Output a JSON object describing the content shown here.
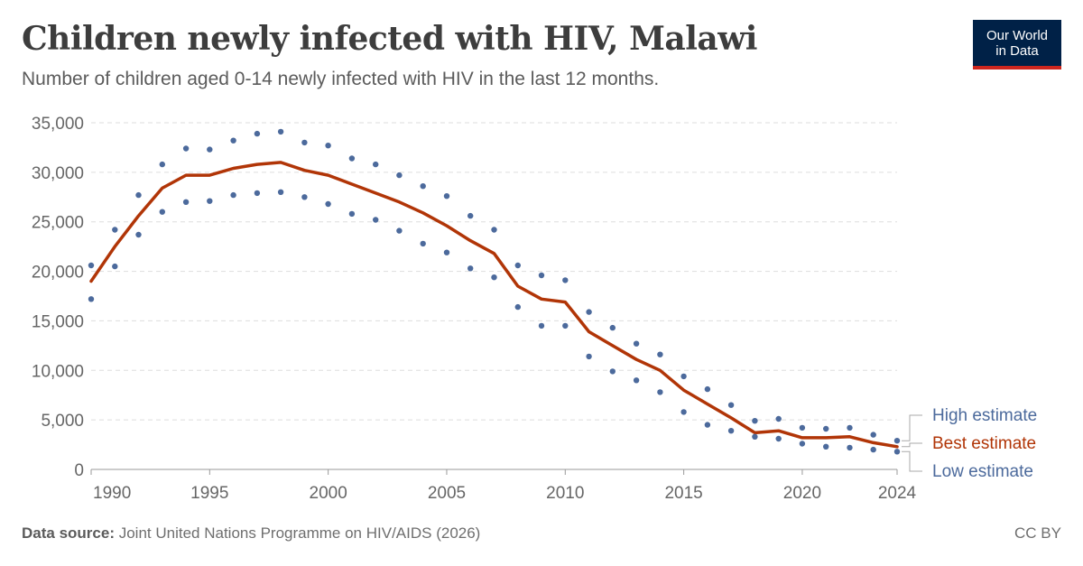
{
  "header": {
    "title": "Children newly infected with HIV, Malawi",
    "subtitle": "Number of children aged 0-14 newly infected with HIV in the last 12 months."
  },
  "logo": {
    "line1": "Our World",
    "line2": "in Data"
  },
  "footer": {
    "source_label": "Data source:",
    "source_text": "Joint United Nations Programme on HIV/AIDS (2026)",
    "license": "CC BY"
  },
  "colors": {
    "best": "#b13507",
    "bounds": "#4c6a9c",
    "grid": "#dddddd",
    "axis_text": "#666666"
  },
  "chart_data": {
    "type": "line",
    "title": "Children newly infected with HIV, Malawi",
    "xlabel": "",
    "ylabel": "",
    "xlim": [
      1990,
      2024
    ],
    "ylim": [
      0,
      35000
    ],
    "x_ticks": [
      "1990",
      "1995",
      "2000",
      "2005",
      "2010",
      "2015",
      "2020",
      "2024"
    ],
    "y_ticks": [
      "0",
      "5,000",
      "10,000",
      "15,000",
      "20,000",
      "25,000",
      "30,000",
      "35,000"
    ],
    "grid": true,
    "legend_placement": "right-end-labels",
    "x": [
      1990,
      1991,
      1992,
      1993,
      1994,
      1995,
      1996,
      1997,
      1998,
      1999,
      2000,
      2001,
      2002,
      2003,
      2004,
      2005,
      2006,
      2007,
      2008,
      2009,
      2010,
      2011,
      2012,
      2013,
      2014,
      2015,
      2016,
      2017,
      2018,
      2019,
      2020,
      2021,
      2022,
      2023,
      2024
    ],
    "series": [
      {
        "name": "High estimate",
        "style": "dots",
        "values": [
          20600,
          24200,
          27700,
          30800,
          32400,
          32300,
          33200,
          33900,
          34100,
          33000,
          32700,
          31400,
          30800,
          29700,
          28600,
          27600,
          25600,
          24200,
          20600,
          19600,
          19100,
          15900,
          14300,
          12700,
          11600,
          9400,
          8100,
          6500,
          4900,
          5100,
          4200,
          4100,
          4200,
          3500,
          2900
        ]
      },
      {
        "name": "Best estimate",
        "style": "line",
        "values": [
          19000,
          22500,
          25600,
          28400,
          29700,
          29700,
          30400,
          30800,
          31000,
          30200,
          29700,
          28800,
          27900,
          27000,
          25900,
          24600,
          23100,
          21800,
          18500,
          17200,
          16900,
          13900,
          12500,
          11100,
          10000,
          8000,
          6600,
          5200,
          3700,
          3900,
          3200,
          3200,
          3300,
          2700,
          2300
        ]
      },
      {
        "name": "Low estimate",
        "style": "dots",
        "values": [
          17200,
          20500,
          23700,
          26000,
          27000,
          27100,
          27700,
          27900,
          28000,
          27500,
          26800,
          25800,
          25200,
          24100,
          22800,
          21900,
          20300,
          19400,
          16400,
          14500,
          14500,
          11400,
          9900,
          9000,
          7800,
          5800,
          4500,
          3900,
          3300,
          3100,
          2600,
          2300,
          2200,
          2000,
          1800
        ]
      }
    ]
  }
}
